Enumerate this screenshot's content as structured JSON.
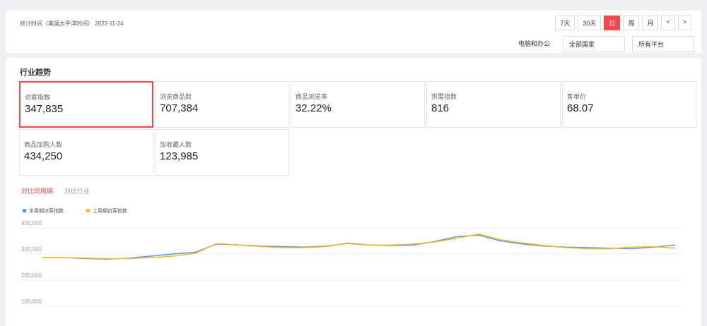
{
  "header": {
    "time_label": "统计时间（美国太平洋时间）",
    "date": "2022-11-24",
    "buttons": [
      "7天",
      "30天",
      "日",
      "周",
      "月",
      "<",
      ">"
    ],
    "filters": [
      "电脑和办公",
      "全部国家",
      "所有平台"
    ]
  },
  "section": {
    "title": "行业趋势",
    "metrics": [
      {
        "label": "访客指数",
        "value": "347,835"
      },
      {
        "label": "浏览商品数",
        "value": "707,384"
      },
      {
        "label": "商品浏览率",
        "value": "32.22%"
      },
      {
        "label": "供需指数",
        "value": "816"
      },
      {
        "label": "客单价",
        "value": "68.07"
      },
      {
        "label": "商品加购人数",
        "value": "434,250"
      },
      {
        "label": "加收藏人数",
        "value": "123,985"
      }
    ],
    "tabs": [
      "对比同周期",
      "对比行业"
    ]
  },
  "chart_data": {
    "type": "line",
    "categories": [
      null,
      null,
      null,
      null,
      null,
      null,
      null,
      null,
      null,
      null,
      null,
      null,
      null,
      null,
      null,
      null,
      null,
      null,
      null,
      null,
      null,
      null,
      null,
      null,
      null,
      null,
      null,
      null,
      null,
      null
    ],
    "series": [
      {
        "name": "本周期访客指数",
        "color": "#5b8ff9",
        "values": [
          270000,
          270000,
          266000,
          264000,
          268000,
          276000,
          284000,
          290000,
          322000,
          318000,
          314000,
          312000,
          310000,
          314000,
          324000,
          318000,
          316000,
          318000,
          332000,
          350000,
          356000,
          334000,
          322000,
          314000,
          310000,
          308000,
          306000,
          304000,
          310000,
          318000
        ]
      },
      {
        "name": "上周期访客指数",
        "color": "#f6bd16",
        "values": [
          270000,
          270000,
          268000,
          266000,
          266000,
          270000,
          276000,
          286000,
          324000,
          318000,
          312000,
          308000,
          308000,
          312000,
          326000,
          318000,
          318000,
          322000,
          330000,
          344000,
          360000,
          338000,
          326000,
          316000,
          308000,
          304000,
          304000,
          310000,
          312000,
          306000
        ]
      }
    ],
    "ylim": [
      50000,
      420000
    ],
    "yticks": [
      {
        "value": 100000,
        "label": "100,000"
      },
      {
        "value": 200000,
        "label": "200,000"
      },
      {
        "value": 300000,
        "label": "300,000"
      },
      {
        "value": 400000,
        "label": "400,000"
      }
    ],
    "grid": true
  }
}
